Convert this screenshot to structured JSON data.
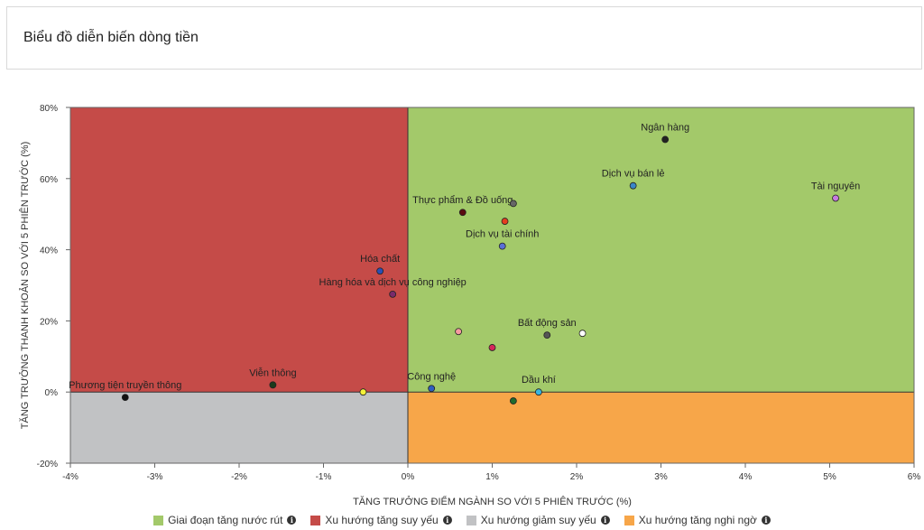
{
  "header": {
    "title": "Biểu đồ diễn biến dòng tiền"
  },
  "chart_data": {
    "type": "scatter",
    "xlabel": "TĂNG TRƯỞNG ĐIỂM NGÀNH SO VỚI 5 PHIÊN TRƯỚC (%)",
    "ylabel": "TĂNG TRƯỞNG THANH KHOẢN SO VỚI 5 PHIÊN TRƯỚC (%)",
    "xlim": [
      -4,
      6
    ],
    "ylim": [
      -20,
      80
    ],
    "xticks": [
      -4,
      -3,
      -2,
      -1,
      0,
      1,
      2,
      3,
      4,
      5,
      6
    ],
    "yticks": [
      -20,
      0,
      20,
      40,
      60,
      80
    ],
    "xtick_labels": [
      "-4%",
      "-3%",
      "-2%",
      "-1%",
      "0%",
      "1%",
      "2%",
      "3%",
      "4%",
      "5%",
      "6%"
    ],
    "ytick_labels": [
      "-20%",
      "0%",
      "20%",
      "40%",
      "60%",
      "80%"
    ],
    "quadrant_colors": {
      "top_right": "#a3c96a",
      "top_left": "#c54b48",
      "bottom_left": "#c1c2c4",
      "bottom_right": "#f7a649"
    },
    "points": [
      {
        "label": "Ngân hàng",
        "x": 3.05,
        "y": 71,
        "color": "#222222"
      },
      {
        "label": "Dịch vụ bán lẻ",
        "x": 2.67,
        "y": 58,
        "color": "#3a86c8"
      },
      {
        "label": "Tài nguyên",
        "x": 5.07,
        "y": 54.5,
        "color": "#c77be0"
      },
      {
        "label": "Thực phẩm & Đồ uống",
        "x": 0.65,
        "y": 50.5,
        "color": "#5a0a10"
      },
      {
        "label": "",
        "x": 1.25,
        "y": 53,
        "color": "#666666"
      },
      {
        "label": "",
        "x": 1.15,
        "y": 48,
        "color": "#e53d1f"
      },
      {
        "label": "Dịch vụ tài chính",
        "x": 1.12,
        "y": 41,
        "color": "#5a6fd8"
      },
      {
        "label": "Hóa chất",
        "x": -0.33,
        "y": 34,
        "color": "#2a4fb5"
      },
      {
        "label": "Hàng hóa và dịch vụ công nghiệp",
        "x": -0.18,
        "y": 27.5,
        "color": "#7a2a6a"
      },
      {
        "label": "",
        "x": 0.6,
        "y": 17,
        "color": "#f59aa0"
      },
      {
        "label": "",
        "x": 1.0,
        "y": 12.5,
        "color": "#d6285a"
      },
      {
        "label": "Bất động sản",
        "x": 1.65,
        "y": 16,
        "color": "#555555"
      },
      {
        "label": "",
        "x": 2.07,
        "y": 16.5,
        "color": "#ffffff"
      },
      {
        "label": "Viễn thông",
        "x": -1.6,
        "y": 2,
        "color": "#1b3a1b"
      },
      {
        "label": "Phương tiện truyền thông",
        "x": -3.35,
        "y": -1.5,
        "color": "#111111"
      },
      {
        "label": "",
        "x": -0.53,
        "y": 0,
        "color": "#f5f23a"
      },
      {
        "label": "Công nghệ",
        "x": 0.28,
        "y": 1,
        "color": "#2f5fc0"
      },
      {
        "label": "Dầu khí",
        "x": 1.55,
        "y": 0,
        "color": "#39b6e3"
      },
      {
        "label": "",
        "x": 1.25,
        "y": -2.5,
        "color": "#1f6b2e"
      }
    ],
    "legend": [
      {
        "label": "Giai đoạn tăng nước rút",
        "color": "#a3c96a"
      },
      {
        "label": "Xu hướng tăng suy yếu",
        "color": "#c54b48"
      },
      {
        "label": "Xu hướng giảm suy yếu",
        "color": "#c1c2c4"
      },
      {
        "label": "Xu hướng tăng nghi ngờ",
        "color": "#f7a649"
      }
    ]
  }
}
